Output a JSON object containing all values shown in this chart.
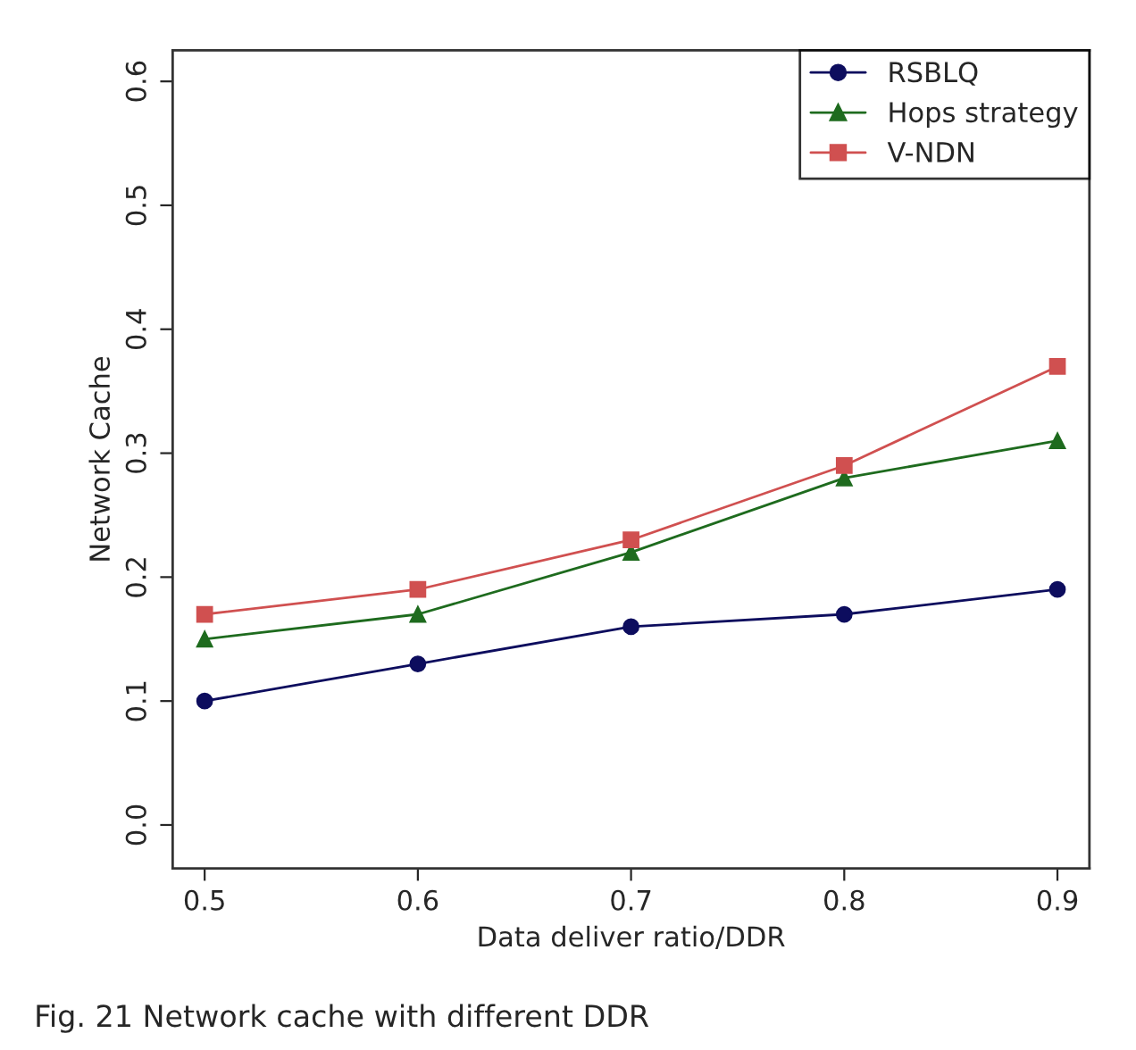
{
  "chart_data": {
    "type": "line",
    "xlabel": "Data deliver ratio/DDR",
    "ylabel": "Network Cache",
    "x": [
      0.5,
      0.6,
      0.7,
      0.8,
      0.9
    ],
    "series": [
      {
        "name": "RSBLQ",
        "color": "#0d0d5e",
        "values": [
          0.1,
          0.13,
          0.16,
          0.17,
          0.19
        ],
        "marker": "circle"
      },
      {
        "name": "Hops strategy",
        "color": "#1e6b1e",
        "values": [
          0.15,
          0.17,
          0.22,
          0.28,
          0.31
        ],
        "marker": "triangle"
      },
      {
        "name": "V-NDN",
        "color": "#d05050",
        "values": [
          0.17,
          0.19,
          0.23,
          0.29,
          0.37
        ],
        "marker": "square"
      }
    ],
    "xlim": [
      0.485,
      0.915
    ],
    "xticks": [
      0.5,
      0.6,
      0.7,
      0.8,
      0.9
    ],
    "ylim": [
      -0.035,
      0.625
    ],
    "yticks": [
      {
        "value": 0,
        "label": "0.0"
      },
      0.1,
      0.2,
      0.3,
      0.4,
      0.5,
      0.6
    ],
    "grid": false,
    "legend": "top right",
    "line_style": "solid",
    "annotations": [
      "Fig. 21 Network cache with different DDR"
    ]
  }
}
